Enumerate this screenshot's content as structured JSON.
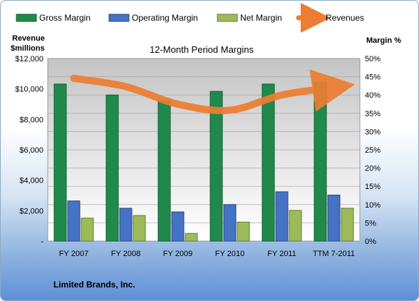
{
  "chart_data": {
    "type": "bar",
    "title": "12-Month Period Margins",
    "company": "Limited Brands, Inc.",
    "categories": [
      "FY 2007",
      "FY 2008",
      "FY 2009",
      "FY 2010",
      "FY 2011",
      "TTM 7-2011"
    ],
    "left_axis": {
      "title_line1": "Revenue",
      "title_line2": "$millions",
      "ticks": [
        "-",
        "$2,000",
        "$4,000",
        "$6,000",
        "$8,000",
        "$10,000",
        "$12,000"
      ],
      "range": [
        0,
        12000
      ]
    },
    "right_axis": {
      "title": "Margin %",
      "ticks": [
        "0%",
        "5%",
        "10%",
        "15%",
        "20%",
        "25%",
        "30%",
        "35%",
        "40%",
        "45%",
        "50%"
      ],
      "range": [
        0,
        50
      ]
    },
    "series": [
      {
        "name": "Gross Margin",
        "axis": "right",
        "kind": "bar",
        "color": "#1f8a4c",
        "values": [
          43.0,
          40.0,
          38.5,
          41.0,
          43.0,
          43.5
        ]
      },
      {
        "name": "Operating Margin",
        "axis": "right",
        "kind": "bar",
        "color": "#4472c4",
        "values": [
          11.0,
          9.0,
          8.0,
          10.0,
          13.5,
          12.6
        ]
      },
      {
        "name": "Net Margin",
        "axis": "right",
        "kind": "bar",
        "color": "#9bbb59",
        "values": [
          6.3,
          7.0,
          2.1,
          5.2,
          8.4,
          9.0
        ]
      },
      {
        "name": "Revenues",
        "axis": "left",
        "kind": "line",
        "color": "#ed7d31",
        "values": [
          10700,
          10150,
          9000,
          8600,
          9600,
          10100
        ]
      }
    ],
    "legend_position": "top",
    "grid": true
  }
}
